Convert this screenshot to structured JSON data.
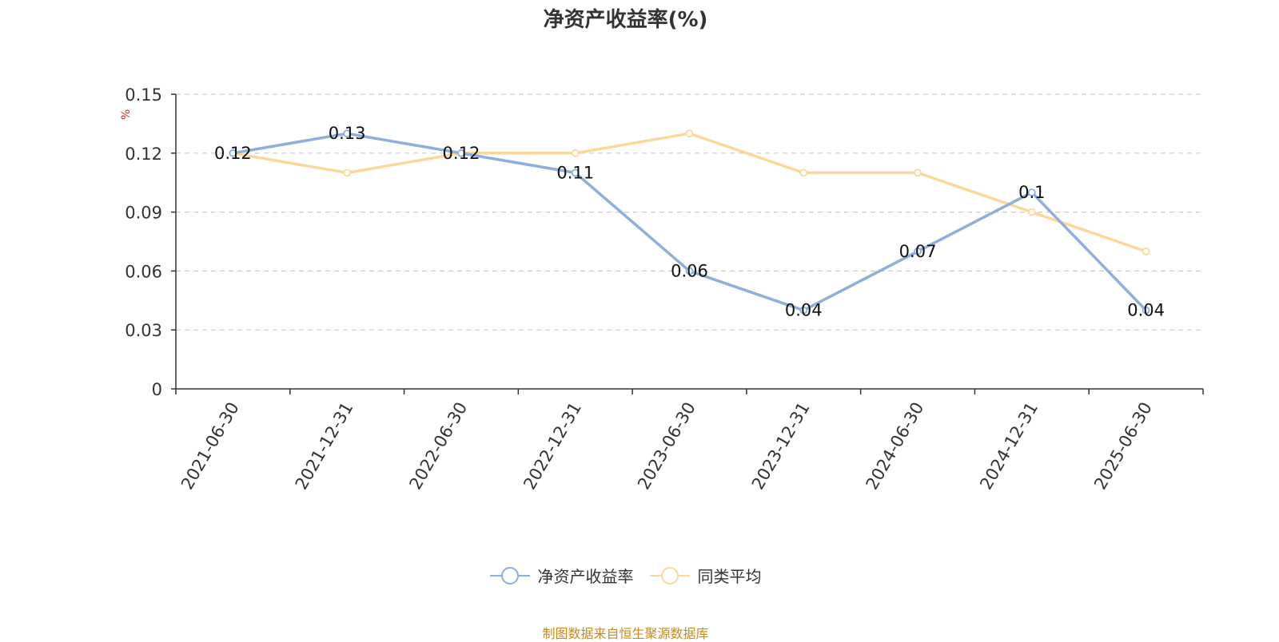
{
  "chart_data": {
    "type": "line",
    "title": "净资产收益率(%)",
    "ylabel": "%",
    "categories": [
      "2021-06-30",
      "2021-12-31",
      "2022-06-30",
      "2022-12-31",
      "2023-06-30",
      "2023-12-31",
      "2024-06-30",
      "2024-12-31",
      "2025-06-30"
    ],
    "ylim": [
      0,
      0.15
    ],
    "yticks": [
      "0",
      "0.03",
      "0.06",
      "0.09",
      "0.12",
      "0.15"
    ],
    "grid": true,
    "legend_position": "bottom",
    "series": [
      {
        "name": "净资产收益率",
        "color": "#8eaedb",
        "values": [
          0.12,
          0.13,
          0.12,
          0.11,
          0.06,
          0.04,
          0.07,
          0.1,
          0.04
        ],
        "labels": [
          "0.12",
          "0.13",
          "0.12",
          "0.11",
          "0.06",
          "0.04",
          "0.07",
          "0.1",
          "0.04"
        ]
      },
      {
        "name": "同类平均",
        "color": "#fbd898",
        "values": [
          0.12,
          0.11,
          0.12,
          0.12,
          0.13,
          0.11,
          0.11,
          0.09,
          0.07
        ]
      }
    ]
  },
  "footer": "制图数据来自恒生聚源数据库"
}
